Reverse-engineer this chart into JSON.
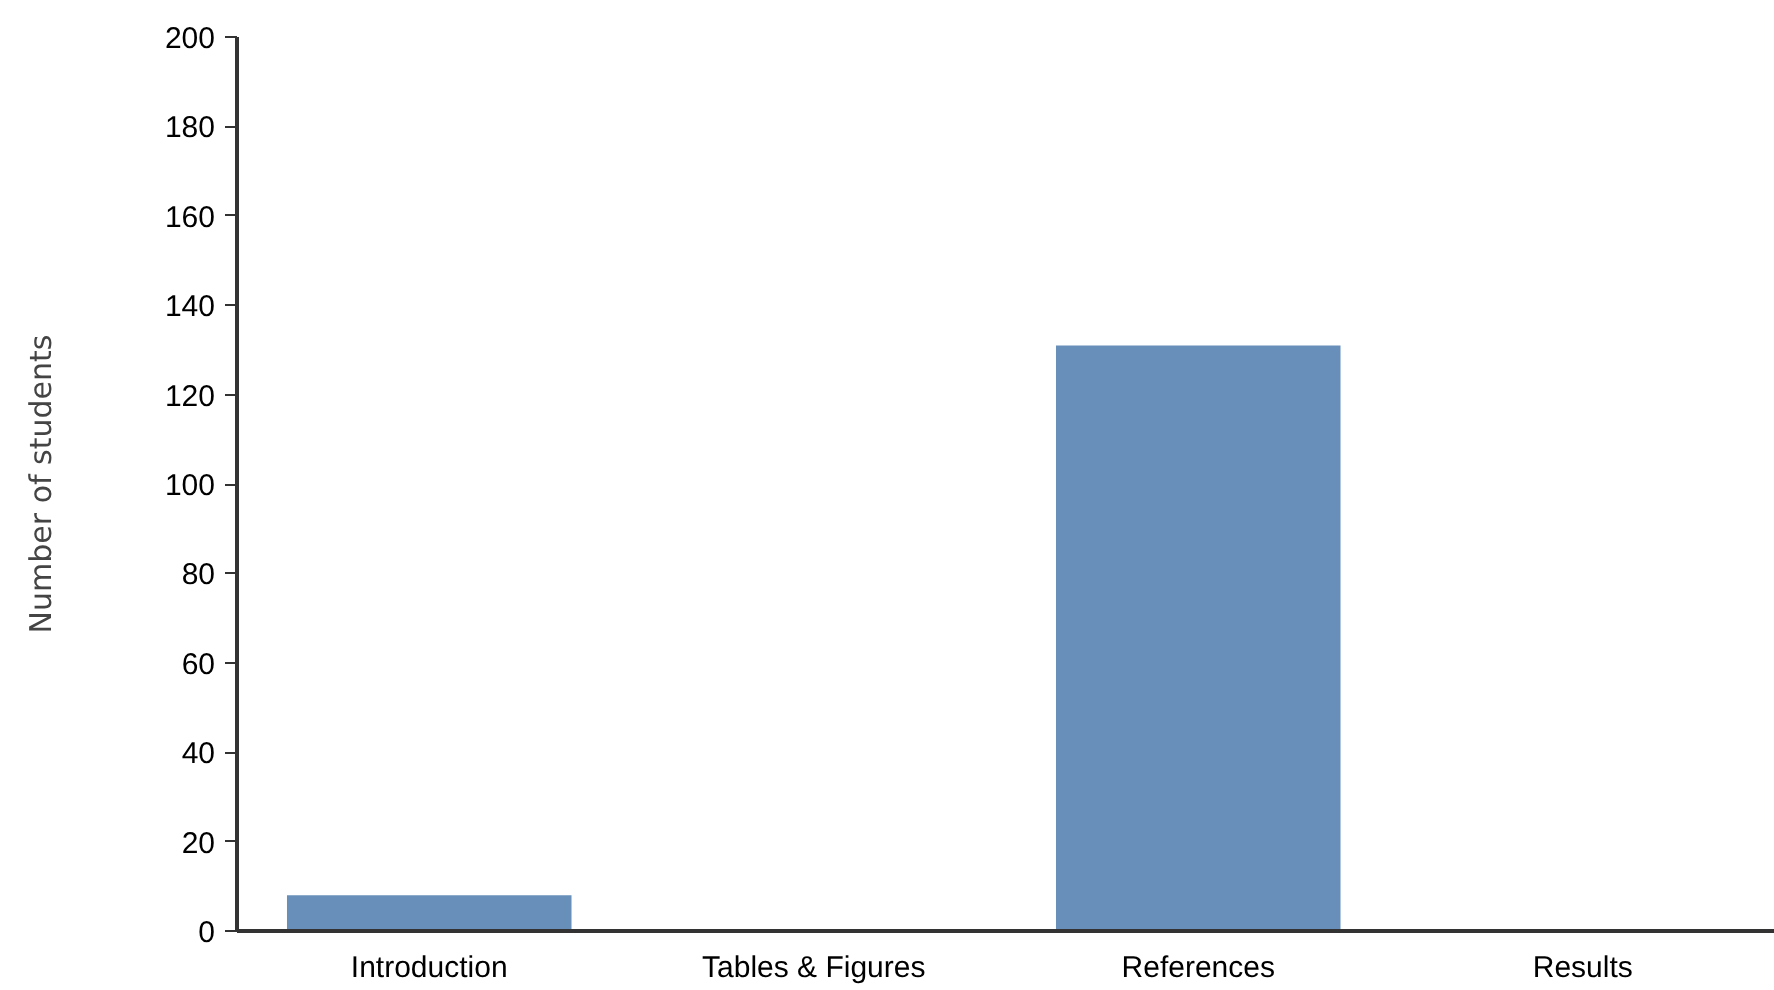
{
  "chart_data": {
    "type": "bar",
    "ylabel": "Number of students",
    "categories": [
      "Introduction",
      "Tables & Figures",
      "References",
      "Results"
    ],
    "values": [
      8,
      0,
      131,
      0
    ],
    "color": "#678fb9",
    "ylim": [
      0,
      200
    ],
    "yticks": [
      0,
      20,
      40,
      60,
      80,
      100,
      120,
      140,
      160,
      180,
      200
    ],
    "grid": false
  }
}
